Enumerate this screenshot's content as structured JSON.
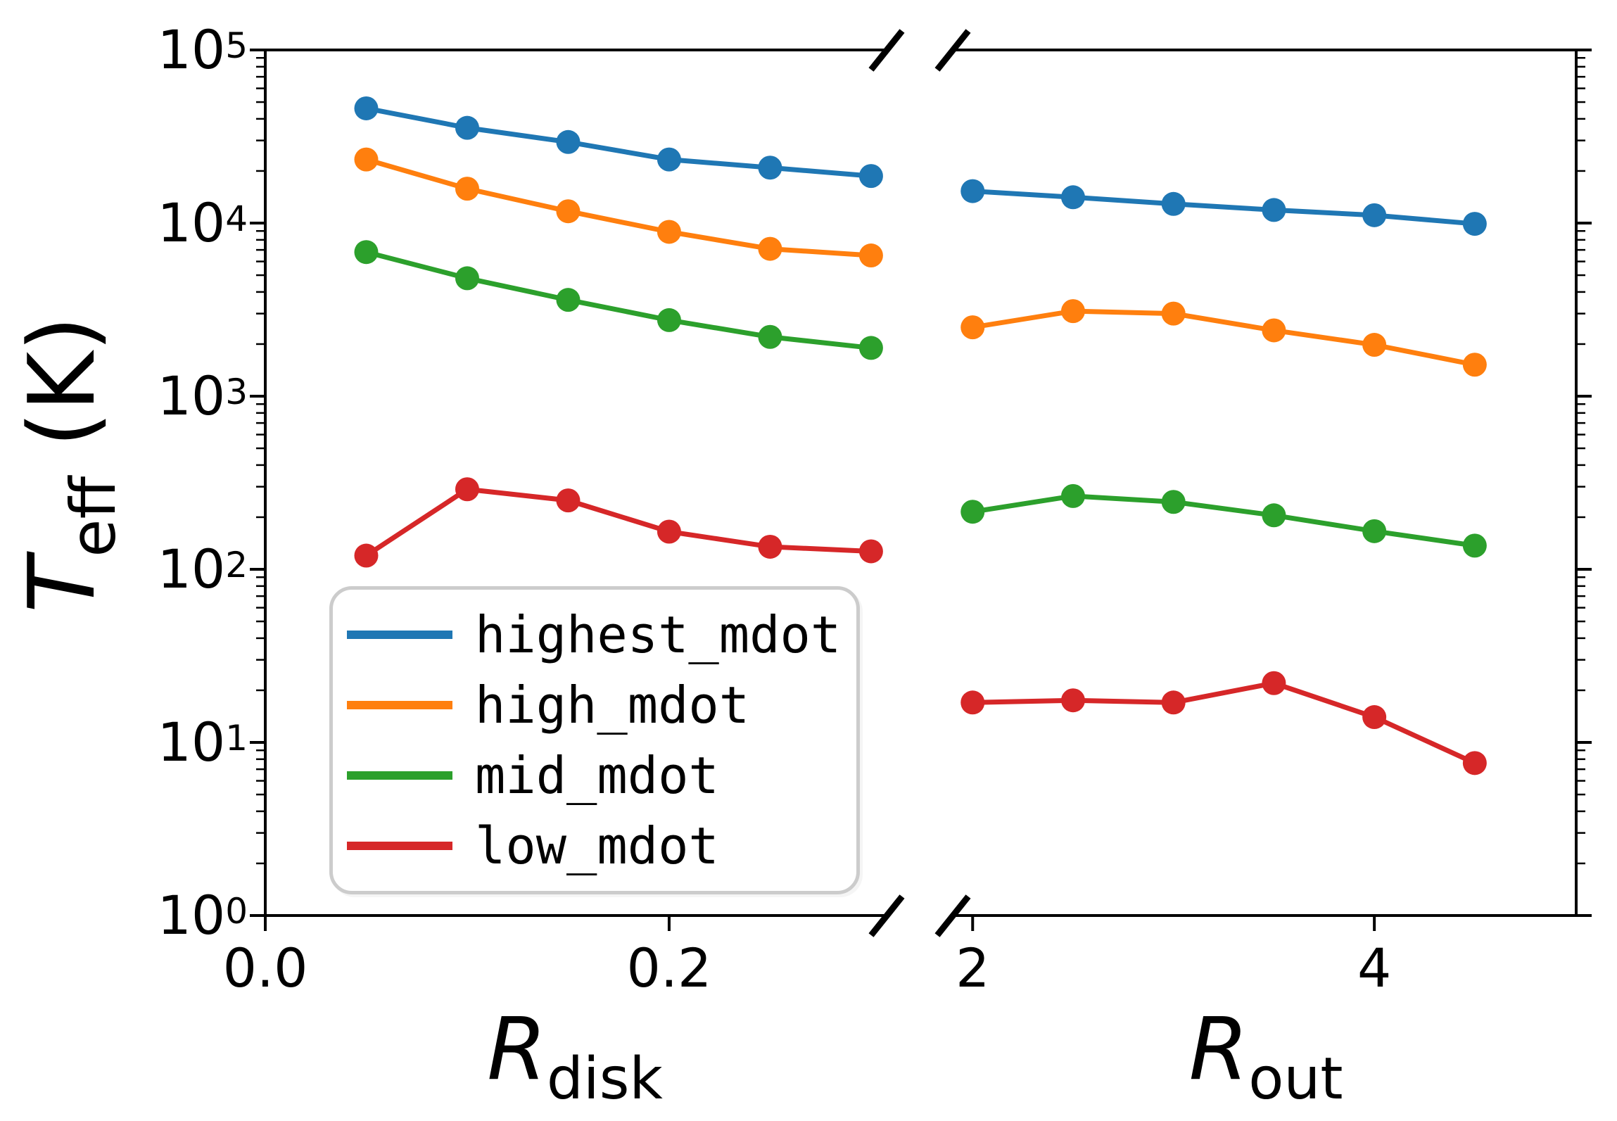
{
  "figure": {
    "background": "#ffffff",
    "axis_color": "#000000"
  },
  "axes": {
    "ylabel": {
      "main": "T",
      "sub": "eff",
      "rest": " (K)"
    },
    "xlabel_left": {
      "main": "R",
      "sub": "disk"
    },
    "xlabel_right": {
      "main": "R",
      "sub": "out"
    },
    "y_ticks": [
      {
        "base": "10",
        "exp": "5",
        "value": 100000
      },
      {
        "base": "10",
        "exp": "4",
        "value": 10000
      },
      {
        "base": "10",
        "exp": "3",
        "value": 1000
      },
      {
        "base": "10",
        "exp": "2",
        "value": 100
      },
      {
        "base": "10",
        "exp": "1",
        "value": 10
      },
      {
        "base": "10",
        "exp": "0",
        "value": 1
      }
    ]
  },
  "legend": {
    "items": [
      {
        "label": "highest_mdot",
        "color": "#1f77b4"
      },
      {
        "label": "high_mdot",
        "color": "#ff7f0e"
      },
      {
        "label": "mid_mdot",
        "color": "#2ca02c"
      },
      {
        "label": "low_mdot",
        "color": "#d62728"
      }
    ]
  },
  "chart_data": {
    "type": "line",
    "yscale": "log",
    "ylim": [
      1,
      100000
    ],
    "ylabel": "T_eff (K)",
    "grid": false,
    "legend_position": "lower left of left panel",
    "marker": "circle",
    "broken_x_axis": true,
    "panels": [
      {
        "id": "left",
        "xlabel": "R_disk",
        "xlim": [
          0.0,
          0.307
        ],
        "x_ticks": [
          {
            "value": 0.0,
            "label": "0.0"
          },
          {
            "value": 0.2,
            "label": "0.2"
          }
        ],
        "x": [
          0.05,
          0.1,
          0.15,
          0.2,
          0.25,
          0.3
        ],
        "series": [
          {
            "name": "highest_mdot",
            "color": "#1f77b4",
            "y": [
              46000,
              35500,
              29400,
              23300,
              20900,
              18700
            ]
          },
          {
            "name": "high_mdot",
            "color": "#ff7f0e",
            "y": [
              23300,
              15800,
              11700,
              8900,
              7100,
              6500
            ]
          },
          {
            "name": "mid_mdot",
            "color": "#2ca02c",
            "y": [
              6800,
              4800,
              3600,
              2750,
              2200,
              1900
            ]
          },
          {
            "name": "low_mdot",
            "color": "#d62728",
            "y": [
              120,
              290,
              250,
              165,
              135,
              127
            ]
          }
        ]
      },
      {
        "id": "right",
        "xlabel": "R_out",
        "xlim": [
          1.915,
          5.005
        ],
        "x_ticks": [
          {
            "value": 2,
            "label": "2"
          },
          {
            "value": 4,
            "label": "4"
          }
        ],
        "x": [
          2.0,
          2.5,
          3.0,
          3.5,
          4.0,
          4.5
        ],
        "series": [
          {
            "name": "highest_mdot",
            "color": "#1f77b4",
            "y": [
              15300,
              14100,
              12900,
              11900,
              11100,
              9900
            ]
          },
          {
            "name": "high_mdot",
            "color": "#ff7f0e",
            "y": [
              2500,
              3100,
              3000,
              2400,
              1980,
              1520
            ]
          },
          {
            "name": "mid_mdot",
            "color": "#2ca02c",
            "y": [
              215,
              265,
              245,
              205,
              166,
              137
            ]
          },
          {
            "name": "low_mdot",
            "color": "#d62728",
            "y": [
              17,
              17.5,
              17,
              22,
              14,
              7.6
            ]
          }
        ]
      }
    ]
  }
}
